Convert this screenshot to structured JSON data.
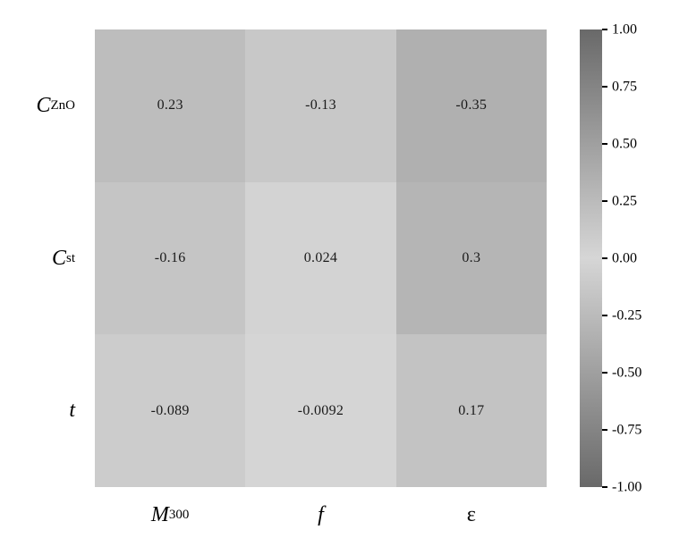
{
  "chart_data": {
    "type": "heatmap",
    "title": "",
    "rows": [
      "C_ZnO",
      "C_st",
      "t"
    ],
    "columns": [
      "M_300",
      "f",
      "epsilon"
    ],
    "values": [
      [
        0.23,
        -0.13,
        -0.35
      ],
      [
        -0.16,
        0.024,
        0.3
      ],
      [
        -0.089,
        -0.0092,
        0.17
      ]
    ],
    "cell_labels": [
      [
        "0.23",
        "-0.13",
        "-0.35"
      ],
      [
        "-0.16",
        "0.024",
        "0.3"
      ],
      [
        "-0.089",
        "-0.0092",
        "0.17"
      ]
    ],
    "row_labels": [
      {
        "base": "C",
        "sub": "ZnO",
        "italic": true
      },
      {
        "base": "C",
        "sub": "st",
        "italic": true
      },
      {
        "base": "t",
        "sub": "",
        "italic": true
      }
    ],
    "col_labels": [
      {
        "base": "M",
        "sub": "300",
        "italic": true
      },
      {
        "base": "f",
        "sub": "",
        "italic": true
      },
      {
        "base": "ε",
        "sub": "",
        "italic": false
      }
    ],
    "colorbar": {
      "vmin": -1,
      "vmax": 1,
      "ticks": [
        "1.00",
        "0.75",
        "0.50",
        "0.25",
        "0.00",
        "-0.25",
        "-0.50",
        "-0.75",
        "-1.00"
      ]
    },
    "colors": {
      "zero_gray": "#d6d6d6",
      "extreme_gray": "#696969"
    },
    "legend_position": "right",
    "grid": false
  }
}
